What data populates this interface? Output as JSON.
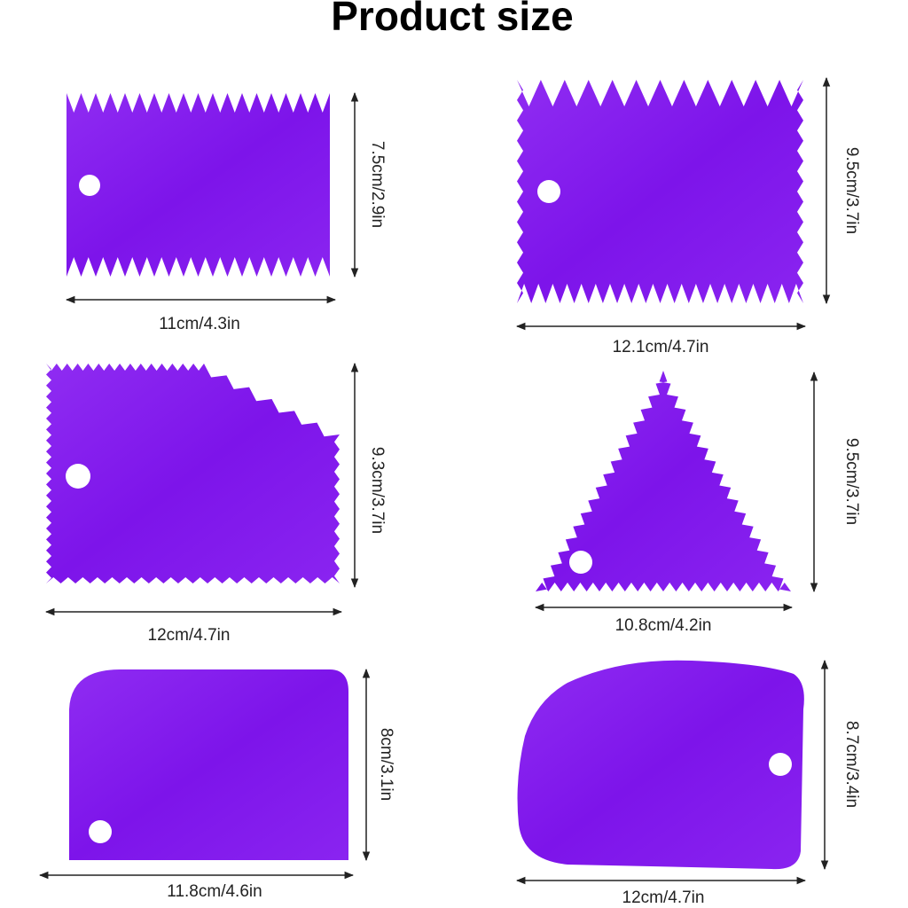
{
  "title": "Product size",
  "items": [
    {
      "width": "11cm/4.3in",
      "height": "7.5cm/2.9in"
    },
    {
      "width": "12.1cm/4.7in",
      "height": "9.5cm/3.7in"
    },
    {
      "width": "12cm/4.7in",
      "height": "9.3cm/3.7in"
    },
    {
      "width": "10.8cm/4.2in",
      "height": "9.5cm/3.7in"
    },
    {
      "width": "11.8cm/4.6in",
      "height": "8cm/3.1in"
    },
    {
      "width": "12cm/4.7in",
      "height": "8.7cm/3.4in"
    }
  ]
}
